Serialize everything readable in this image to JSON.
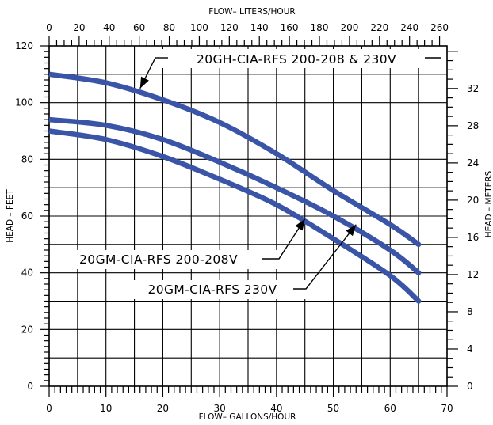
{
  "chart_data": {
    "type": "line",
    "xlabel": "FLOW– GALLONS/HOUR",
    "x2label": "FLOW– LITERS/HOUR",
    "ylabel": "HEAD – FEET",
    "y2label": "HEAD – METERS",
    "xlim": [
      0,
      70
    ],
    "ylim": [
      0,
      120
    ],
    "x2lim": [
      0,
      264.98
    ],
    "y2lim": [
      0,
      36.58
    ],
    "x_ticks": [
      "0",
      "10",
      "20",
      "30",
      "40",
      "50",
      "60",
      "70"
    ],
    "y_ticks": [
      "0",
      "20",
      "40",
      "60",
      "80",
      "100",
      "120"
    ],
    "x2_ticks": [
      "0",
      "20",
      "40",
      "60",
      "80",
      "100",
      "120",
      "140",
      "160",
      "180",
      "200",
      "220",
      "240",
      "260"
    ],
    "y2_ticks": [
      "0",
      "4",
      "8",
      "12",
      "16",
      "20",
      "24",
      "28",
      "32"
    ],
    "grid": true,
    "line_color": "#3a55a8",
    "series": [
      {
        "name": "20GH-CIA-RFS 200-208 & 230V",
        "x": [
          0,
          10,
          20,
          30,
          40,
          50,
          60,
          65
        ],
        "y": [
          110,
          107,
          101,
          93,
          82,
          69,
          57,
          50
        ]
      },
      {
        "name": "20GM-CIA-RFS 200-208V",
        "x": [
          0,
          10,
          20,
          30,
          40,
          50,
          60,
          65
        ],
        "y": [
          94,
          92,
          87,
          79,
          70,
          60,
          48,
          40
        ]
      },
      {
        "name": "20GM-CIA-RFS 230V",
        "x": [
          0,
          10,
          20,
          30,
          40,
          50,
          60,
          65
        ],
        "y": [
          90,
          87,
          81,
          73,
          64,
          52,
          39,
          30
        ]
      }
    ],
    "annotations": [
      {
        "series": 0,
        "text": "20GH-CIA-RFS 200-208 & 230V",
        "point": [
          16,
          105
        ]
      },
      {
        "series": 1,
        "text": "20GM-CIA-RFS 200-208V",
        "point": [
          45,
          59
        ]
      },
      {
        "series": 2,
        "text": "20GM-CIA-RFS 230V",
        "point": [
          54,
          57
        ]
      }
    ]
  }
}
